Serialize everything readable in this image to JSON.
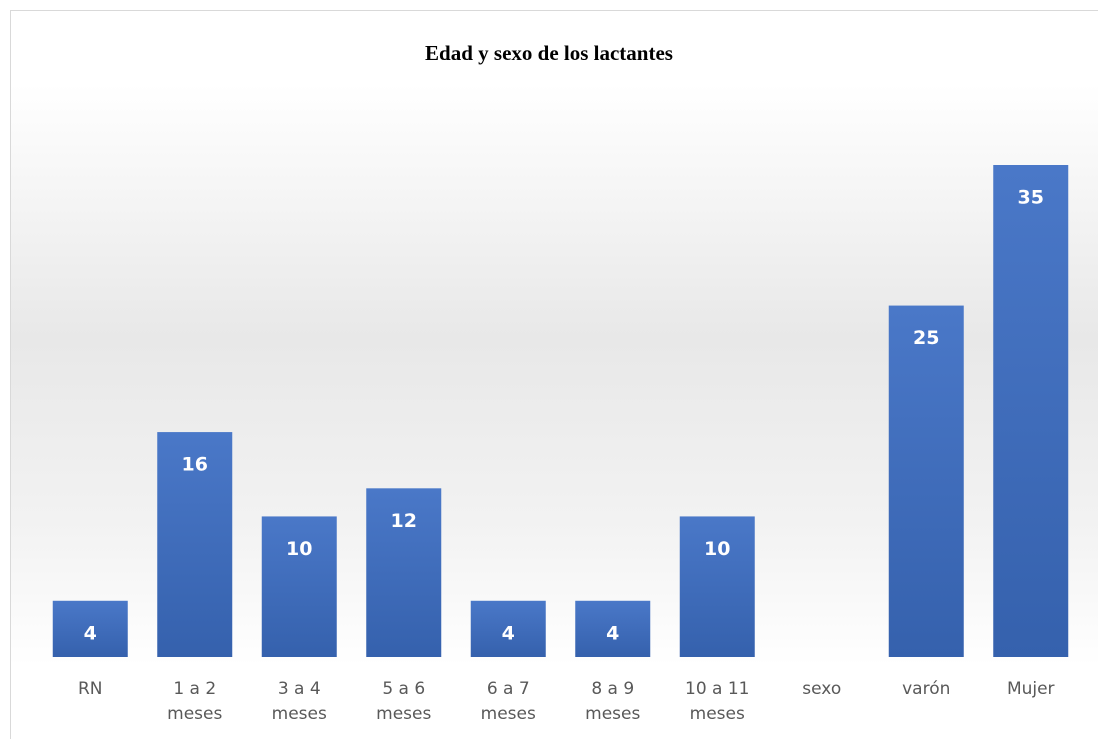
{
  "chart_data": {
    "type": "bar",
    "title": "Edad y sexo de los lactantes",
    "categories": [
      "RN",
      "1 a 2 meses",
      "3 a 4 meses",
      "5 a 6 meses",
      "6 a 7 meses",
      "8 a 9 meses",
      "10 a 11 meses",
      "sexo",
      "varón",
      "Mujer"
    ],
    "values": [
      4,
      16,
      10,
      12,
      4,
      4,
      10,
      null,
      25,
      35
    ],
    "color": "#4472c4"
  }
}
